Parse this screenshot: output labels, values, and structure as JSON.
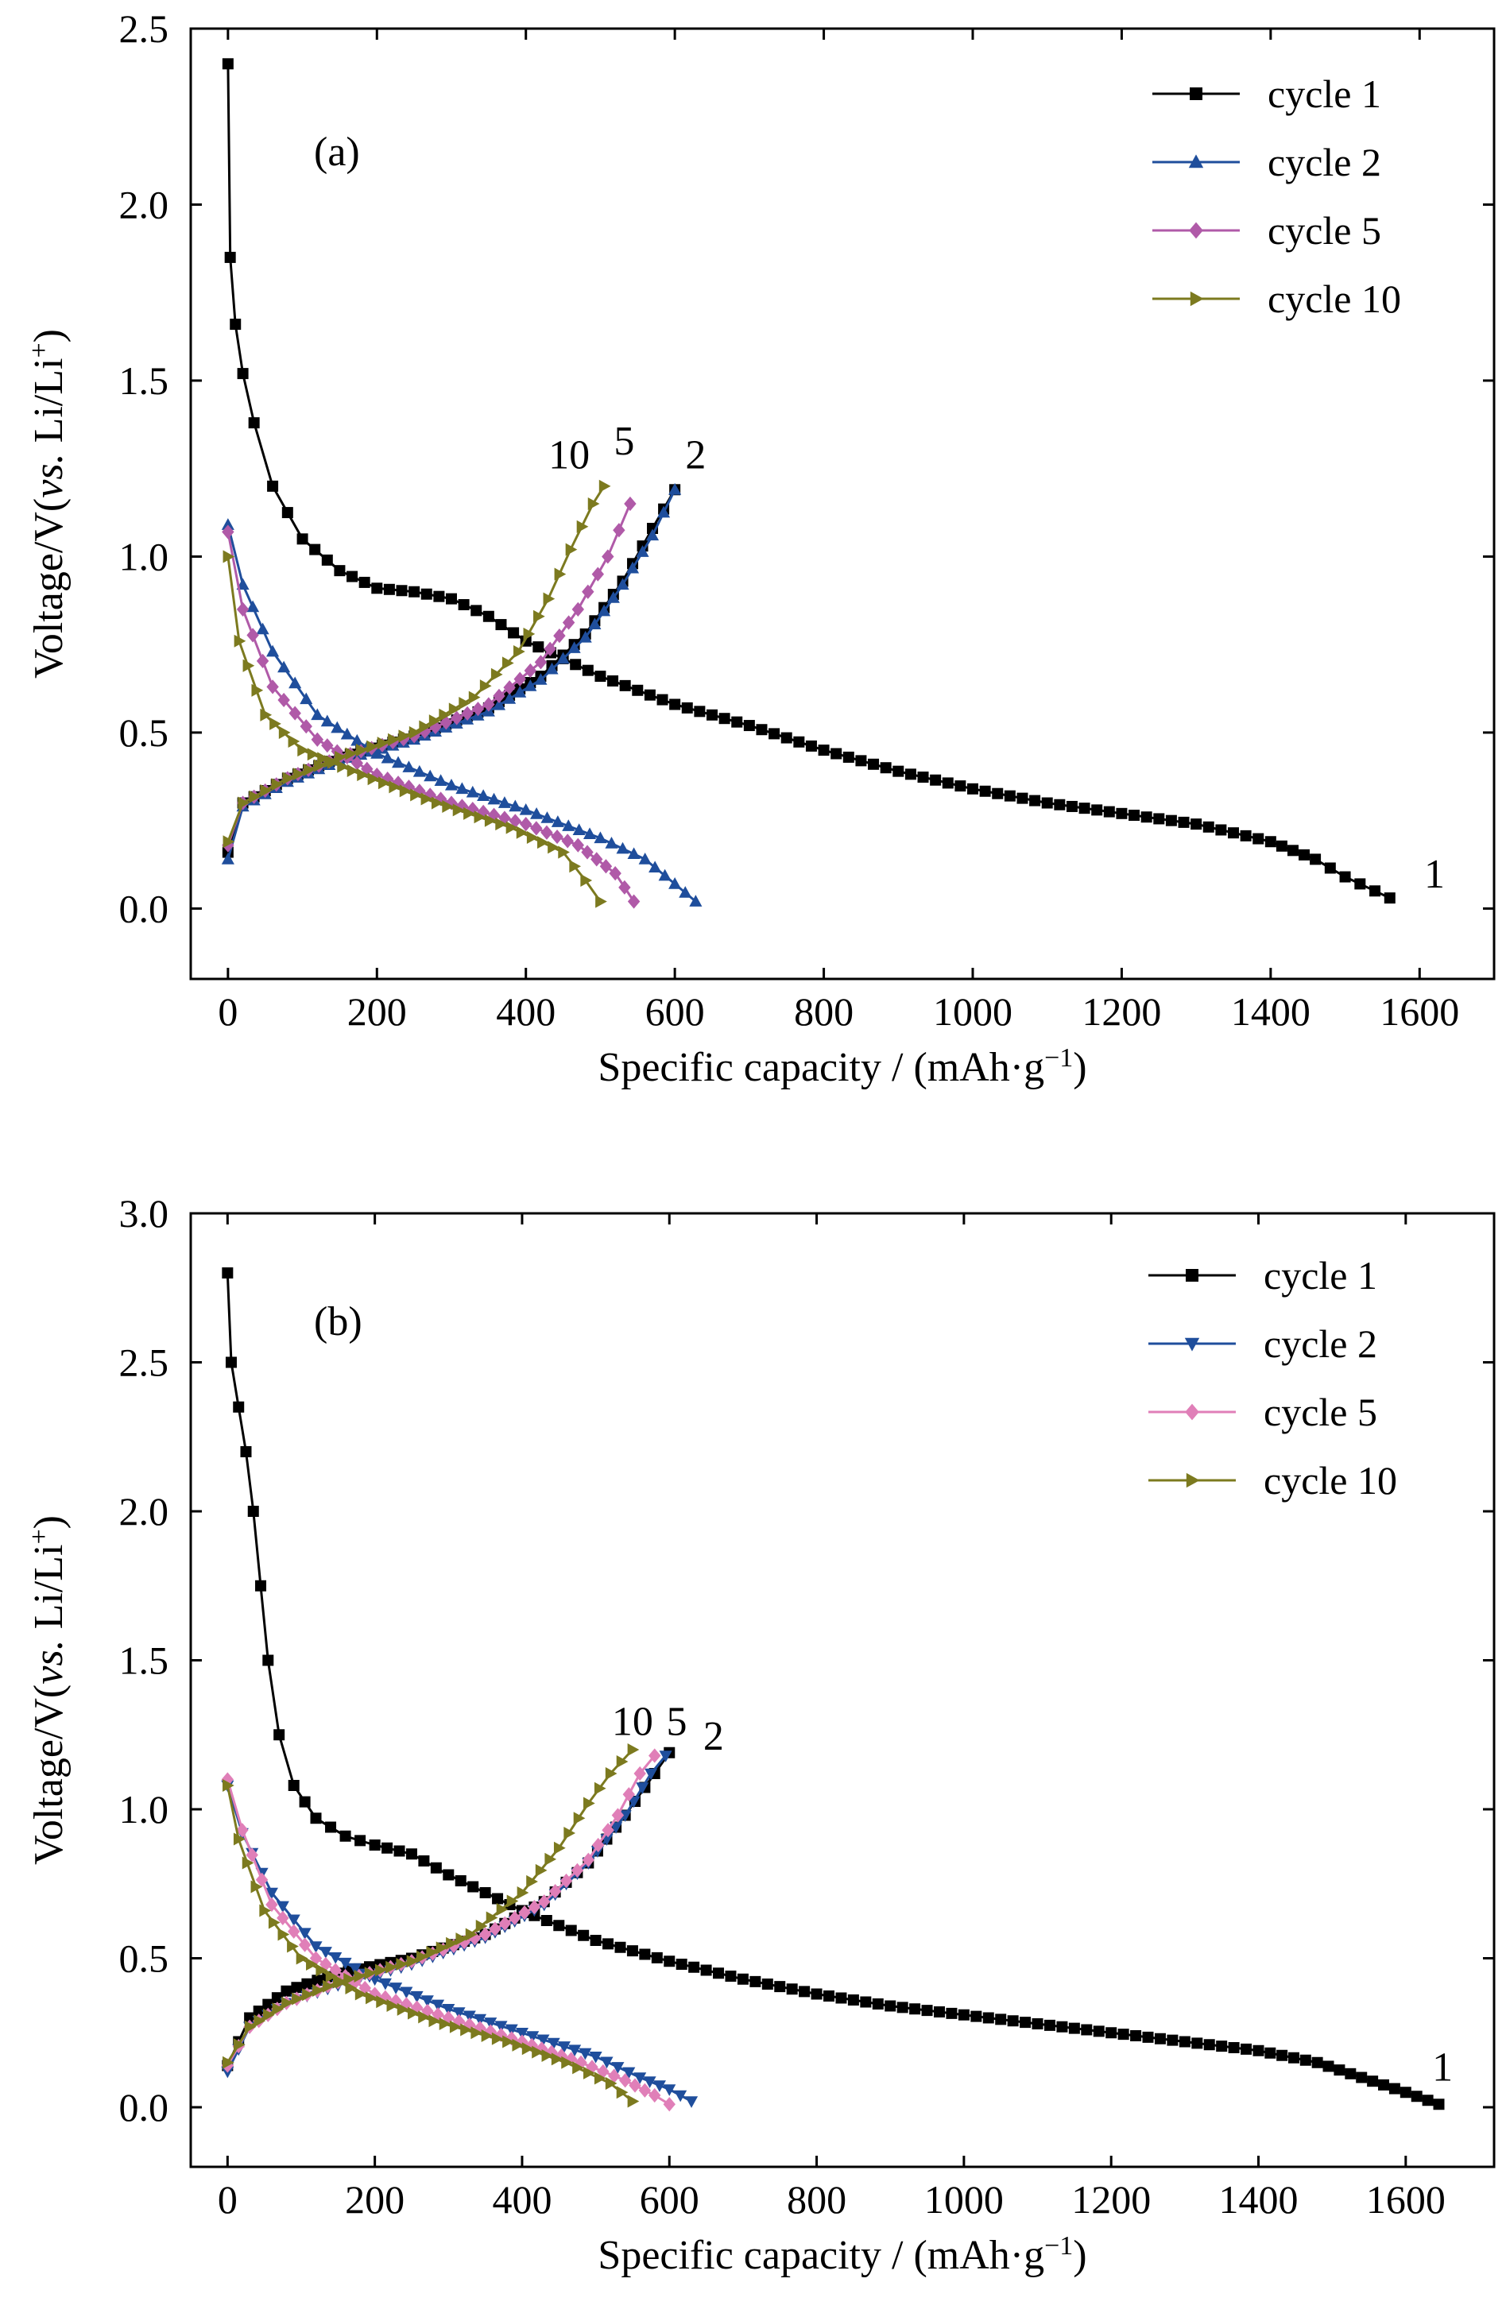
{
  "chart_data": [
    {
      "type": "line",
      "panel_label": "(a)",
      "xlabel": "Specific capacity / (mAh·g",
      "xlabel_sup": "−1",
      "xlabel_end": ")",
      "ylabel": "Voltage/V(",
      "ylabel_italic": "vs.",
      "ylabel_mid": " Li/Li",
      "ylabel_sup": "+",
      "ylabel_end": ")",
      "xlim": [
        -50,
        1700
      ],
      "ylim": [
        -0.2,
        2.5
      ],
      "xticks": [
        0,
        200,
        400,
        600,
        800,
        1000,
        1200,
        1400,
        1600
      ],
      "yticks": [
        0.0,
        0.5,
        1.0,
        1.5,
        2.0,
        2.5
      ],
      "xtick_labels": [
        "0",
        "200",
        "400",
        "600",
        "800",
        "1000",
        "1200",
        "1400",
        "1600"
      ],
      "ytick_labels": [
        "0.0",
        "0.5",
        "1.0",
        "1.5",
        "2.0",
        "2.5"
      ],
      "grid": false,
      "legend_position": "top-right",
      "curve_labels": [
        {
          "text": "10",
          "x": 458,
          "y": 1.25
        },
        {
          "text": "5",
          "x": 532,
          "y": 1.29
        },
        {
          "text": "2",
          "x": 628,
          "y": 1.25
        },
        {
          "text": "1",
          "x": 1620,
          "y": 0.06
        }
      ],
      "series": [
        {
          "name": "cycle 1",
          "color": "#000000",
          "marker": "square",
          "discharge": [
            [
              0,
              2.4
            ],
            [
              3,
              1.85
            ],
            [
              10,
              1.66
            ],
            [
              20,
              1.52
            ],
            [
              35,
              1.38
            ],
            [
              60,
              1.2
            ],
            [
              100,
              1.05
            ],
            [
              150,
              0.96
            ],
            [
              200,
              0.91
            ],
            [
              250,
              0.9
            ],
            [
              300,
              0.88
            ],
            [
              350,
              0.83
            ],
            [
              400,
              0.76
            ],
            [
              500,
              0.66
            ],
            [
              600,
              0.58
            ],
            [
              700,
              0.52
            ],
            [
              800,
              0.45
            ],
            [
              900,
              0.39
            ],
            [
              1000,
              0.34
            ],
            [
              1100,
              0.3
            ],
            [
              1200,
              0.27
            ],
            [
              1300,
              0.24
            ],
            [
              1400,
              0.19
            ],
            [
              1460,
              0.14
            ],
            [
              1500,
              0.09
            ],
            [
              1540,
              0.05
            ],
            [
              1560,
              0.03
            ]
          ],
          "charge": [
            [
              0,
              0.16
            ],
            [
              20,
              0.3
            ],
            [
              80,
              0.37
            ],
            [
              150,
              0.43
            ],
            [
              250,
              0.49
            ],
            [
              350,
              0.57
            ],
            [
              420,
              0.66
            ],
            [
              480,
              0.78
            ],
            [
              530,
              0.93
            ],
            [
              570,
              1.08
            ],
            [
              600,
              1.19
            ]
          ]
        },
        {
          "name": "cycle 2",
          "color": "#1f4e9c",
          "marker": "triangle-up",
          "discharge": [
            [
              0,
              1.09
            ],
            [
              20,
              0.92
            ],
            [
              60,
              0.73
            ],
            [
              120,
              0.55
            ],
            [
              200,
              0.44
            ],
            [
              300,
              0.35
            ],
            [
              400,
              0.28
            ],
            [
              500,
              0.2
            ],
            [
              560,
              0.14
            ],
            [
              600,
              0.07
            ],
            [
              628,
              0.02
            ]
          ],
          "charge": [
            [
              0,
              0.14
            ],
            [
              20,
              0.29
            ],
            [
              80,
              0.36
            ],
            [
              150,
              0.42
            ],
            [
              250,
              0.48
            ],
            [
              350,
              0.56
            ],
            [
              420,
              0.65
            ],
            [
              480,
              0.77
            ],
            [
              530,
              0.92
            ],
            [
              570,
              1.06
            ],
            [
              600,
              1.19
            ]
          ]
        },
        {
          "name": "cycle 5",
          "color": "#b05aa8",
          "marker": "diamond",
          "discharge": [
            [
              0,
              1.07
            ],
            [
              20,
              0.85
            ],
            [
              60,
              0.63
            ],
            [
              120,
              0.48
            ],
            [
              200,
              0.38
            ],
            [
              300,
              0.3
            ],
            [
              400,
              0.24
            ],
            [
              470,
              0.18
            ],
            [
              520,
              0.1
            ],
            [
              545,
              0.02
            ]
          ],
          "charge": [
            [
              0,
              0.18
            ],
            [
              20,
              0.3
            ],
            [
              80,
              0.37
            ],
            [
              150,
              0.43
            ],
            [
              250,
              0.49
            ],
            [
              350,
              0.58
            ],
            [
              420,
              0.7
            ],
            [
              470,
              0.85
            ],
            [
              510,
              1.0
            ],
            [
              540,
              1.15
            ]
          ]
        },
        {
          "name": "cycle 10",
          "color": "#7c7a1f",
          "marker": "triangle-right",
          "discharge": [
            [
              0,
              1.0
            ],
            [
              15,
              0.76
            ],
            [
              50,
              0.55
            ],
            [
              100,
              0.45
            ],
            [
              180,
              0.38
            ],
            [
              280,
              0.3
            ],
            [
              380,
              0.23
            ],
            [
              450,
              0.16
            ],
            [
              480,
              0.08
            ],
            [
              500,
              0.02
            ]
          ],
          "charge": [
            [
              0,
              0.19
            ],
            [
              20,
              0.3
            ],
            [
              80,
              0.37
            ],
            [
              150,
              0.43
            ],
            [
              250,
              0.5
            ],
            [
              330,
              0.6
            ],
            [
              390,
              0.73
            ],
            [
              430,
              0.88
            ],
            [
              460,
              1.02
            ],
            [
              490,
              1.15
            ],
            [
              505,
              1.2
            ]
          ]
        }
      ]
    },
    {
      "type": "line",
      "panel_label": "(b)",
      "xlabel": "Specific capacity / (mAh·g",
      "xlabel_sup": "−1",
      "xlabel_end": ")",
      "ylabel": "Voltage/V(",
      "ylabel_italic": "vs.",
      "ylabel_mid": " Li/Li",
      "ylabel_sup": "+",
      "ylabel_end": ")",
      "xlim": [
        -50,
        1720
      ],
      "ylim": [
        -0.2,
        3.0
      ],
      "xticks": [
        0,
        200,
        400,
        600,
        800,
        1000,
        1200,
        1400,
        1600
      ],
      "yticks": [
        0.0,
        0.5,
        1.0,
        1.5,
        2.0,
        2.5,
        3.0
      ],
      "xtick_labels": [
        "0",
        "200",
        "400",
        "600",
        "800",
        "1000",
        "1200",
        "1400",
        "1600"
      ],
      "ytick_labels": [
        "0.0",
        "0.5",
        "1.0",
        "1.5",
        "2.0",
        "2.5",
        "3.0"
      ],
      "grid": false,
      "legend_position": "top-right",
      "curve_labels": [
        {
          "text": "10",
          "x": 550,
          "y": 1.25
        },
        {
          "text": "5",
          "x": 610,
          "y": 1.25
        },
        {
          "text": "2",
          "x": 660,
          "y": 1.2
        },
        {
          "text": "1",
          "x": 1650,
          "y": 0.09
        }
      ],
      "series": [
        {
          "name": "cycle 1",
          "color": "#000000",
          "marker": "square",
          "discharge": [
            [
              0,
              2.8
            ],
            [
              5,
              2.5
            ],
            [
              15,
              2.35
            ],
            [
              25,
              2.2
            ],
            [
              35,
              2.0
            ],
            [
              45,
              1.75
            ],
            [
              55,
              1.5
            ],
            [
              70,
              1.25
            ],
            [
              90,
              1.08
            ],
            [
              120,
              0.97
            ],
            [
              160,
              0.91
            ],
            [
              200,
              0.88
            ],
            [
              250,
              0.85
            ],
            [
              300,
              0.78
            ],
            [
              350,
              0.72
            ],
            [
              400,
              0.66
            ],
            [
              500,
              0.56
            ],
            [
              600,
              0.49
            ],
            [
              700,
              0.43
            ],
            [
              800,
              0.38
            ],
            [
              900,
              0.34
            ],
            [
              1000,
              0.31
            ],
            [
              1100,
              0.28
            ],
            [
              1200,
              0.25
            ],
            [
              1300,
              0.22
            ],
            [
              1400,
              0.19
            ],
            [
              1480,
              0.15
            ],
            [
              1540,
              0.1
            ],
            [
              1600,
              0.05
            ],
            [
              1645,
              0.01
            ]
          ],
          "charge": [
            [
              0,
              0.14
            ],
            [
              30,
              0.3
            ],
            [
              80,
              0.39
            ],
            [
              150,
              0.45
            ],
            [
              250,
              0.5
            ],
            [
              350,
              0.58
            ],
            [
              430,
              0.69
            ],
            [
              490,
              0.82
            ],
            [
              540,
              0.98
            ],
            [
              580,
              1.12
            ],
            [
              600,
              1.19
            ]
          ]
        },
        {
          "name": "cycle 2",
          "color": "#1f4e9c",
          "marker": "triangle-down",
          "discharge": [
            [
              0,
              1.08
            ],
            [
              20,
              0.92
            ],
            [
              60,
              0.72
            ],
            [
              120,
              0.54
            ],
            [
              200,
              0.43
            ],
            [
              300,
              0.33
            ],
            [
              400,
              0.25
            ],
            [
              500,
              0.17
            ],
            [
              560,
              0.1
            ],
            [
              600,
              0.06
            ],
            [
              630,
              0.02
            ]
          ],
          "charge": [
            [
              0,
              0.12
            ],
            [
              30,
              0.27
            ],
            [
              80,
              0.35
            ],
            [
              150,
              0.41
            ],
            [
              250,
              0.48
            ],
            [
              350,
              0.57
            ],
            [
              430,
              0.68
            ],
            [
              490,
              0.82
            ],
            [
              540,
              0.98
            ],
            [
              575,
              1.12
            ],
            [
              595,
              1.18
            ]
          ]
        },
        {
          "name": "cycle 5",
          "color": "#e07fb8",
          "marker": "diamond",
          "discharge": [
            [
              0,
              1.1
            ],
            [
              20,
              0.93
            ],
            [
              60,
              0.68
            ],
            [
              120,
              0.5
            ],
            [
              200,
              0.38
            ],
            [
              300,
              0.3
            ],
            [
              400,
              0.22
            ],
            [
              480,
              0.15
            ],
            [
              540,
              0.09
            ],
            [
              580,
              0.04
            ],
            [
              600,
              0.01
            ]
          ],
          "charge": [
            [
              0,
              0.14
            ],
            [
              30,
              0.27
            ],
            [
              80,
              0.35
            ],
            [
              150,
              0.42
            ],
            [
              250,
              0.49
            ],
            [
              350,
              0.58
            ],
            [
              430,
              0.69
            ],
            [
              490,
              0.83
            ],
            [
              530,
              0.98
            ],
            [
              560,
              1.12
            ],
            [
              580,
              1.18
            ]
          ]
        },
        {
          "name": "cycle 10",
          "color": "#7c7a1f",
          "marker": "triangle-right",
          "discharge": [
            [
              0,
              1.08
            ],
            [
              15,
              0.9
            ],
            [
              50,
              0.66
            ],
            [
              100,
              0.5
            ],
            [
              180,
              0.38
            ],
            [
              280,
              0.29
            ],
            [
              380,
              0.22
            ],
            [
              460,
              0.15
            ],
            [
              520,
              0.08
            ],
            [
              550,
              0.02
            ]
          ],
          "charge": [
            [
              0,
              0.15
            ],
            [
              30,
              0.27
            ],
            [
              80,
              0.35
            ],
            [
              150,
              0.42
            ],
            [
              250,
              0.49
            ],
            [
              330,
              0.58
            ],
            [
              400,
              0.72
            ],
            [
              450,
              0.87
            ],
            [
              490,
              1.02
            ],
            [
              520,
              1.12
            ],
            [
              550,
              1.2
            ]
          ]
        }
      ]
    }
  ]
}
